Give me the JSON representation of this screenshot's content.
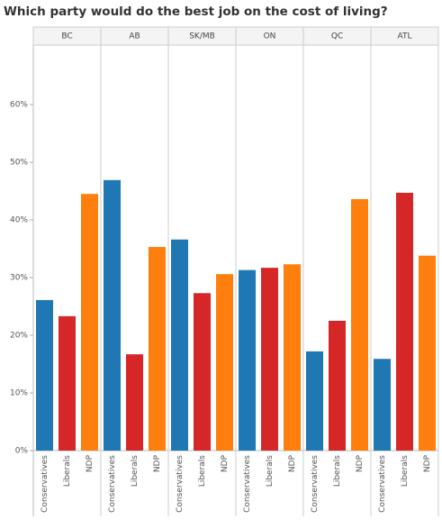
{
  "chart_data": {
    "type": "bar",
    "title": "Which party would do the best job on the cost of living?",
    "categories": [
      "Conservatives",
      "Liberals",
      "NDP"
    ],
    "colors": [
      "#1f77b4",
      "#d62728",
      "#ff7f0e"
    ],
    "panels": [
      {
        "name": "BC",
        "values": [
          26.1,
          23.3,
          44.5
        ]
      },
      {
        "name": "AB",
        "values": [
          46.9,
          16.7,
          35.3
        ]
      },
      {
        "name": "SK/MB",
        "values": [
          36.6,
          27.3,
          30.6
        ]
      },
      {
        "name": "ON",
        "values": [
          31.3,
          31.7,
          32.3
        ]
      },
      {
        "name": "QC",
        "values": [
          17.2,
          22.5,
          43.6
        ]
      },
      {
        "name": "ATL",
        "values": [
          15.9,
          44.7,
          33.8
        ]
      }
    ],
    "ylim": [
      0,
      70
    ],
    "yticks": [
      {
        "value": 0,
        "label": "0%"
      },
      {
        "value": 10,
        "label": "10%"
      },
      {
        "value": 20,
        "label": "20%"
      },
      {
        "value": 30,
        "label": "30%"
      },
      {
        "value": 40,
        "label": "40%"
      },
      {
        "value": 50,
        "label": "50%"
      },
      {
        "value": 60,
        "label": "60%"
      }
    ]
  }
}
